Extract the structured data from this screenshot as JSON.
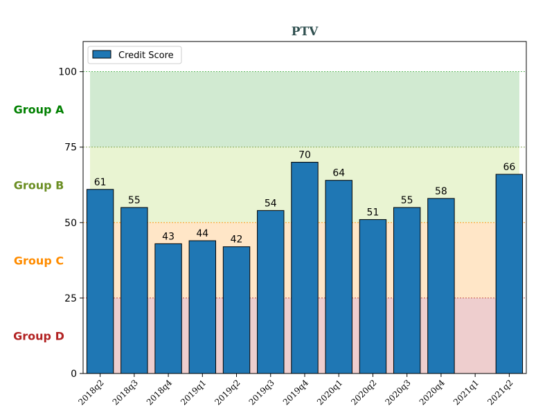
{
  "chart_data": {
    "type": "bar",
    "title": "PTV",
    "xlabel": "",
    "ylabel": "",
    "categories": [
      "2018q2",
      "2018q3",
      "2018q4",
      "2019q1",
      "2019q2",
      "2019q3",
      "2019q4",
      "2020q1",
      "2020q2",
      "2020q3",
      "2020q4",
      "2021q1",
      "2021q2"
    ],
    "series": [
      {
        "name": "Credit Score",
        "color": "#1f77b4",
        "values": [
          61,
          55,
          43,
          44,
          42,
          54,
          70,
          64,
          51,
          55,
          58,
          null,
          66
        ]
      }
    ],
    "ylim": [
      0,
      110
    ],
    "yticks": [
      0,
      25,
      50,
      75,
      100
    ],
    "grid": false,
    "legend_position": "top-left",
    "bands": [
      {
        "label": "Group A",
        "from": 75,
        "to": 100,
        "fill": "#2ca02c",
        "label_color": "#008000",
        "line_color": "#2ca02c"
      },
      {
        "label": "Group B",
        "from": 50,
        "to": 75,
        "fill": "#9acd32",
        "label_color": "#6b8e23",
        "line_color": "#6b8e23"
      },
      {
        "label": "Group C",
        "from": 25,
        "to": 50,
        "fill": "#ff8c00",
        "label_color": "#ff8c00",
        "line_color": "#ff8c00"
      },
      {
        "label": "Group D",
        "from": 0,
        "to": 25,
        "fill": "#b22222",
        "label_color": "#b22222",
        "line_color": "#b22222"
      }
    ]
  }
}
